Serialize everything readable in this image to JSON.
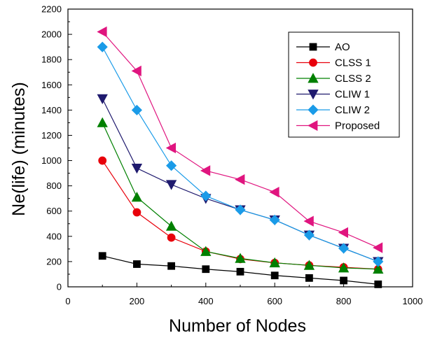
{
  "chart_data": {
    "type": "line",
    "title": "",
    "xlabel": "Number of Nodes",
    "ylabel": "Ne(life) (minutes)",
    "xlim": [
      0,
      1000
    ],
    "ylim": [
      0,
      2200
    ],
    "xticks": [
      0,
      200,
      400,
      600,
      800,
      1000
    ],
    "yticks": [
      0,
      200,
      400,
      600,
      800,
      1000,
      1200,
      1400,
      1600,
      1800,
      2000,
      2200
    ],
    "legend_position": "top-right",
    "x": [
      100,
      200,
      300,
      400,
      500,
      600,
      700,
      800,
      900
    ],
    "series": [
      {
        "name": "AO",
        "color": "#000000",
        "marker": "square",
        "values": [
          245,
          180,
          165,
          140,
          120,
          90,
          70,
          50,
          20
        ]
      },
      {
        "name": "CLSS 1",
        "color": "#e8000b",
        "marker": "circle",
        "values": [
          1000,
          590,
          390,
          280,
          220,
          190,
          170,
          155,
          140
        ]
      },
      {
        "name": "CLSS 2",
        "color": "#008000",
        "marker": "triangle-up",
        "values": [
          1300,
          710,
          480,
          280,
          225,
          190,
          170,
          150,
          140
        ]
      },
      {
        "name": "CLIW 1",
        "color": "#1f1a6e",
        "marker": "triangle-down",
        "values": [
          1490,
          940,
          810,
          700,
          610,
          530,
          410,
          305,
          200
        ]
      },
      {
        "name": "CLIW 2",
        "color": "#1a9be8",
        "marker": "diamond",
        "values": [
          1900,
          1400,
          960,
          720,
          610,
          530,
          410,
          305,
          200
        ]
      },
      {
        "name": "Proposed",
        "color": "#e0157f",
        "marker": "triangle-left",
        "values": [
          2020,
          1710,
          1100,
          920,
          850,
          750,
          520,
          430,
          310
        ]
      }
    ]
  }
}
